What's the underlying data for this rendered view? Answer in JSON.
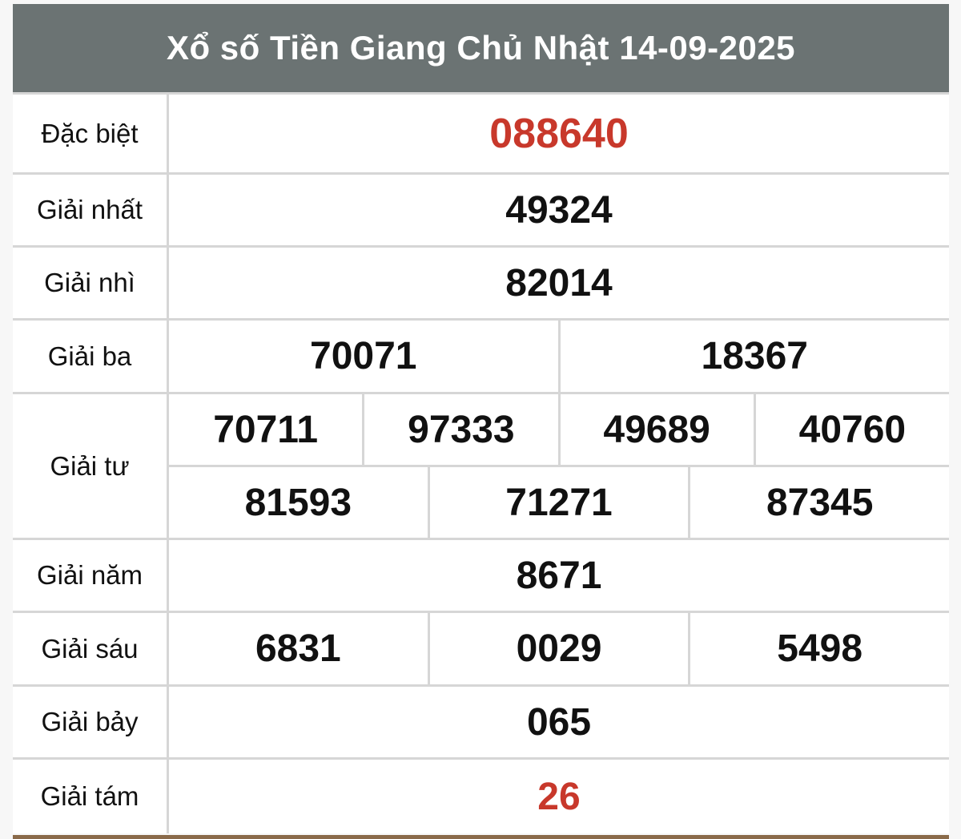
{
  "title": "Xổ số Tiền Giang Chủ Nhật 14-09-2025",
  "colors": {
    "header_bg": "#6b7373",
    "highlight": "#c8382b"
  },
  "prizes": [
    {
      "label": "Đặc biệt",
      "rows": [
        [
          "088640"
        ]
      ],
      "highlight": true
    },
    {
      "label": "Giải nhất",
      "rows": [
        [
          "49324"
        ]
      ]
    },
    {
      "label": "Giải nhì",
      "rows": [
        [
          "82014"
        ]
      ]
    },
    {
      "label": "Giải ba",
      "rows": [
        [
          "70071",
          "18367"
        ]
      ]
    },
    {
      "label": "Giải tư",
      "rows": [
        [
          "70711",
          "97333",
          "49689",
          "40760"
        ],
        [
          "81593",
          "71271",
          "87345"
        ]
      ]
    },
    {
      "label": "Giải năm",
      "rows": [
        [
          "8671"
        ]
      ]
    },
    {
      "label": "Giải sáu",
      "rows": [
        [
          "6831",
          "0029",
          "5498"
        ]
      ]
    },
    {
      "label": "Giải bảy",
      "rows": [
        [
          "065"
        ]
      ]
    },
    {
      "label": "Giải tám",
      "rows": [
        [
          "26"
        ]
      ],
      "highlight": true
    }
  ]
}
